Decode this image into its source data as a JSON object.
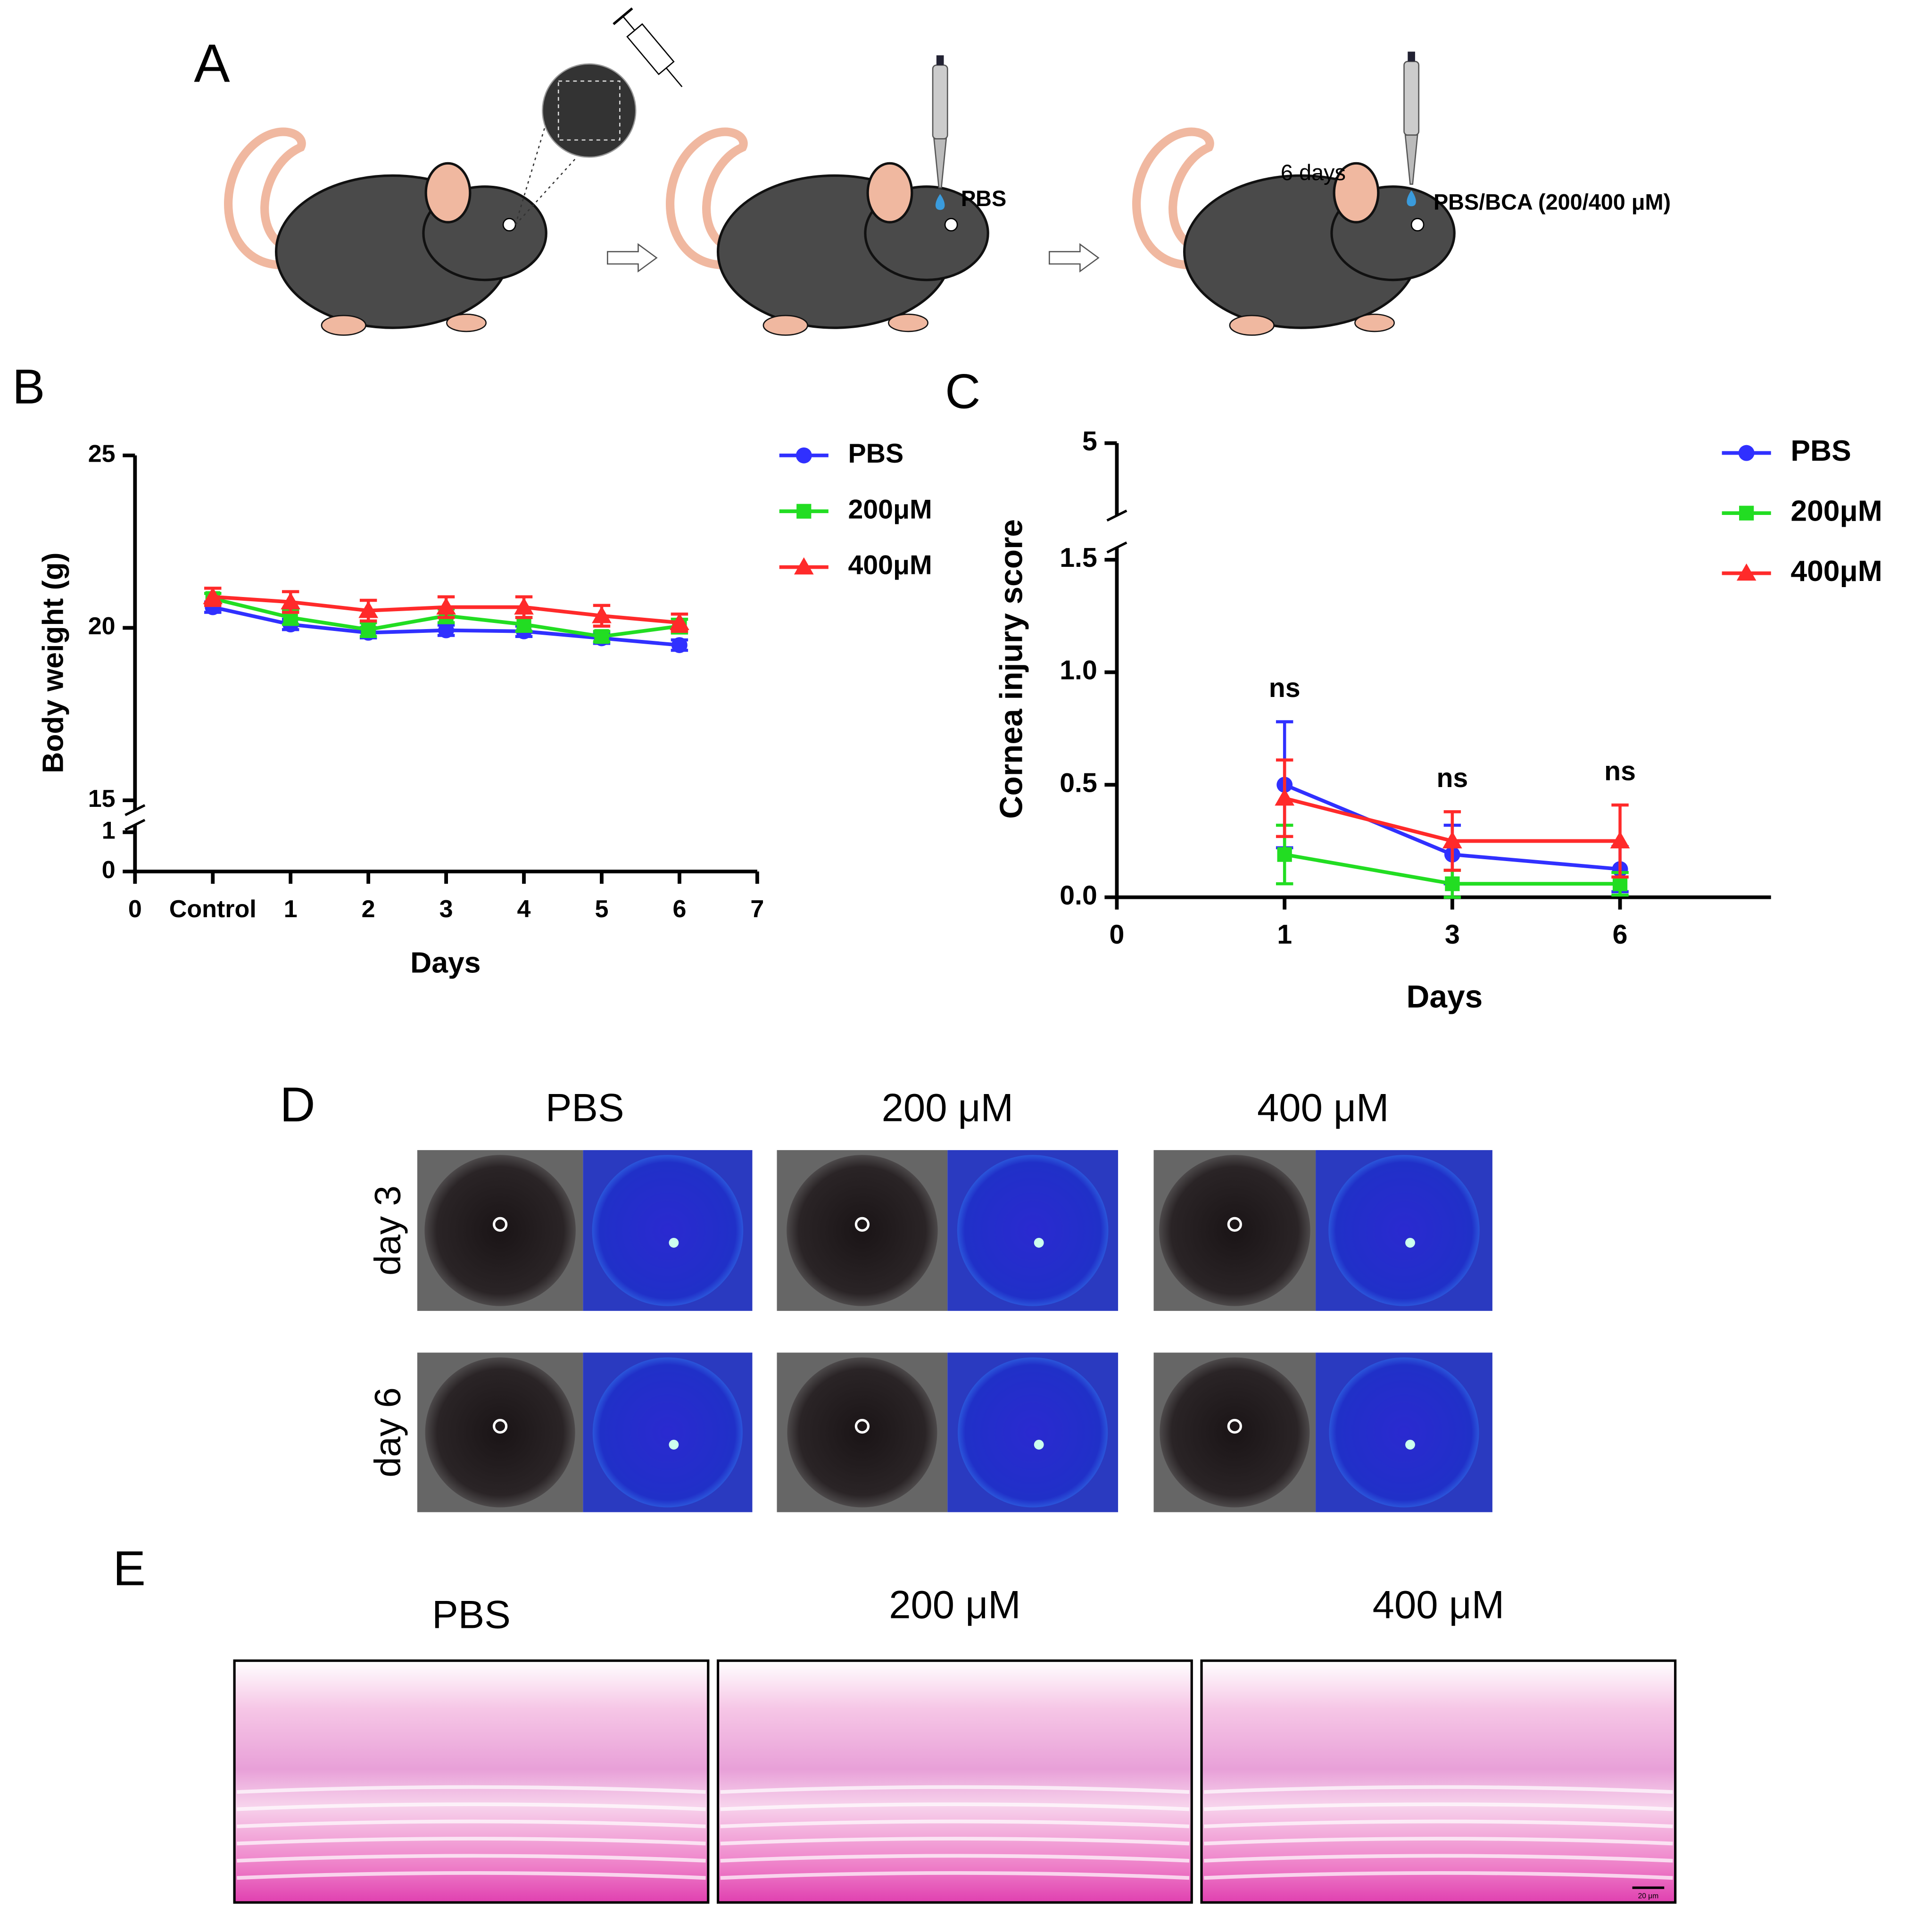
{
  "panel_a": {
    "label": "A",
    "drop_1": "PBS",
    "interval": "6 days",
    "drop_2": "PBS/BCA (200/400 μM)"
  },
  "chart_data": [
    {
      "panel_label": "B",
      "type": "line",
      "x_label": "Days",
      "y_label": "Body weight (g)",
      "x": [
        1,
        2,
        3,
        4,
        5,
        6,
        7
      ],
      "xlim": [
        0,
        8
      ],
      "xticks": [
        0,
        {
          "value": 1,
          "label": "Control"
        },
        {
          "value": 2,
          "label": "1"
        },
        {
          "value": 3,
          "label": "2"
        },
        {
          "value": 4,
          "label": "3"
        },
        {
          "value": 5,
          "label": "4"
        },
        {
          "value": 6,
          "label": "5"
        },
        {
          "value": 7,
          "label": "6"
        },
        {
          "value": 8,
          "label": "7"
        }
      ],
      "ylim": [
        15,
        25
      ],
      "yticks": [
        15,
        20,
        25
      ],
      "y_break_lim": [
        0,
        1
      ],
      "y_break_ticks": [
        0,
        1
      ],
      "series": [
        {
          "name": "PBS",
          "color": "#3030ff",
          "marker": "circle",
          "values": [
            20.6,
            20.1,
            19.86,
            19.93,
            19.9,
            19.7,
            19.5
          ],
          "errors": [
            0.15,
            0.15,
            0.15,
            0.15,
            0.15,
            0.15,
            0.15
          ]
        },
        {
          "name": "200μM",
          "color": "#22dd22",
          "marker": "square",
          "values": [
            20.85,
            20.3,
            19.95,
            20.35,
            20.1,
            19.75,
            20.05
          ],
          "errors": [
            0.15,
            0.2,
            0.2,
            0.2,
            0.2,
            0.15,
            0.2
          ]
        },
        {
          "name": "400μM",
          "color": "#ff2a2a",
          "marker": "triangle",
          "values": [
            20.9,
            20.75,
            20.5,
            20.6,
            20.6,
            20.35,
            20.15
          ],
          "errors": [
            0.25,
            0.3,
            0.3,
            0.3,
            0.3,
            0.3,
            0.25
          ]
        }
      ]
    },
    {
      "panel_label": "C",
      "type": "line",
      "x_label": "Days",
      "y_label": "Cornea injury score",
      "x": [
        1,
        2,
        3
      ],
      "xlim": [
        0,
        3.9
      ],
      "xticks": [
        0,
        1,
        {
          "value": 2,
          "label": "3"
        },
        {
          "value": 3,
          "label": "6"
        }
      ],
      "ylim": [
        0,
        1.5
      ],
      "yticks": [
        {
          "value": 0,
          "label": "0.0"
        },
        {
          "value": 0.5,
          "label": "0.5"
        },
        {
          "value": 1,
          "label": "1.0"
        },
        {
          "value": 1.5,
          "label": "1.5"
        }
      ],
      "y_break_lim": [
        1.5,
        5
      ],
      "y_break_ticks": [
        5
      ],
      "series": [
        {
          "name": "PBS",
          "color": "#3030ff",
          "marker": "circle",
          "values": [
            0.5,
            0.19,
            0.125
          ],
          "errors": [
            0.28,
            0.13,
            0.1
          ]
        },
        {
          "name": "200μM",
          "color": "#22dd22",
          "marker": "square",
          "values": [
            0.19,
            0.06,
            0.06
          ],
          "errors": [
            0.13,
            0.06,
            0.05
          ]
        },
        {
          "name": "400μM",
          "color": "#ff2a2a",
          "marker": "triangle",
          "values": [
            0.44,
            0.25,
            0.25
          ],
          "errors": [
            0.17,
            0.13,
            0.16
          ]
        }
      ],
      "annotations": [
        {
          "text": "ns",
          "x": 1
        },
        {
          "text": "ns",
          "x": 2
        },
        {
          "text": "ns",
          "x": 3
        }
      ]
    }
  ],
  "panel_d": {
    "label": "D",
    "columns": [
      "PBS",
      "200 μM",
      "400 μM"
    ],
    "rows": [
      "day 3",
      "day 6"
    ]
  },
  "panel_e": {
    "label": "E",
    "columns": [
      "PBS",
      "200 μM",
      "400 μM"
    ],
    "scale_bar": "20 μm"
  }
}
